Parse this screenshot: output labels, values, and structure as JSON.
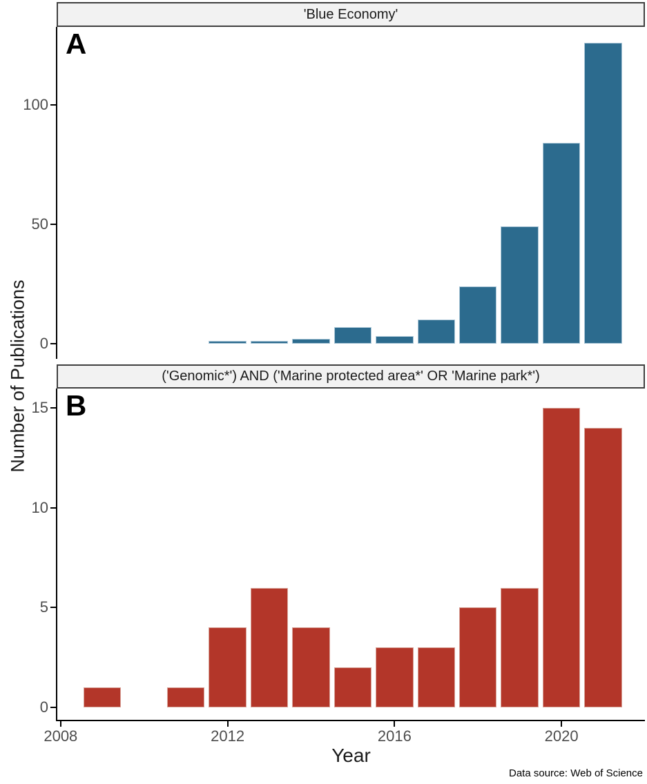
{
  "figure": {
    "ylabel": "Number of Publications",
    "xlabel": "Year",
    "caption": "Data source: Web of Science",
    "colors": {
      "background": "#ffffff",
      "strip_fill": "#f2f2f2",
      "strip_border": "#3f3f3f",
      "axis_line": "#000000",
      "tick_label": "#4d4d4d",
      "text": "#1a1a1a",
      "panel_a_bar": "#2c6b8e",
      "panel_a_bar_stroke": "#aec9d9",
      "panel_b_bar": "#b33629",
      "panel_b_bar_stroke": "#d8a49a"
    }
  },
  "chart_data": [
    {
      "type": "bar",
      "panel_label": "A",
      "title": "'Blue Economy'",
      "x": [
        2012,
        2013,
        2014,
        2015,
        2016,
        2017,
        2018,
        2019,
        2020,
        2021
      ],
      "values": [
        1,
        1,
        2,
        7,
        3,
        10,
        24,
        49,
        84,
        126
      ],
      "bar_fill": "#2c6b8e",
      "bar_stroke": "#aec9d9",
      "xlim": [
        2007.92,
        2022.0
      ],
      "ylim": [
        -6.4,
        132.6
      ],
      "yticks": [
        0,
        50,
        100
      ],
      "xticks": [
        2008,
        2012,
        2016,
        2020
      ],
      "show_x_axis": false,
      "bar_width_years": 0.9,
      "grid": false,
      "legend": false
    },
    {
      "type": "bar",
      "panel_label": "B",
      "title": "('Genomic*') AND ('Marine protected area*' OR 'Marine park*')",
      "x": [
        2009,
        2011,
        2012,
        2013,
        2014,
        2015,
        2016,
        2017,
        2018,
        2019,
        2020,
        2021
      ],
      "values": [
        1,
        1,
        4,
        6,
        4,
        2,
        3,
        3,
        5,
        6,
        15,
        14
      ],
      "bar_fill": "#b33629",
      "bar_stroke": "#d8a49a",
      "xlim": [
        2007.92,
        2022.0
      ],
      "ylim": [
        -0.62,
        15.98
      ],
      "yticks": [
        0,
        5,
        10,
        15
      ],
      "xticks": [
        2008,
        2012,
        2016,
        2020
      ],
      "show_x_axis": true,
      "bar_width_years": 0.9,
      "grid": false,
      "legend": false
    }
  ]
}
